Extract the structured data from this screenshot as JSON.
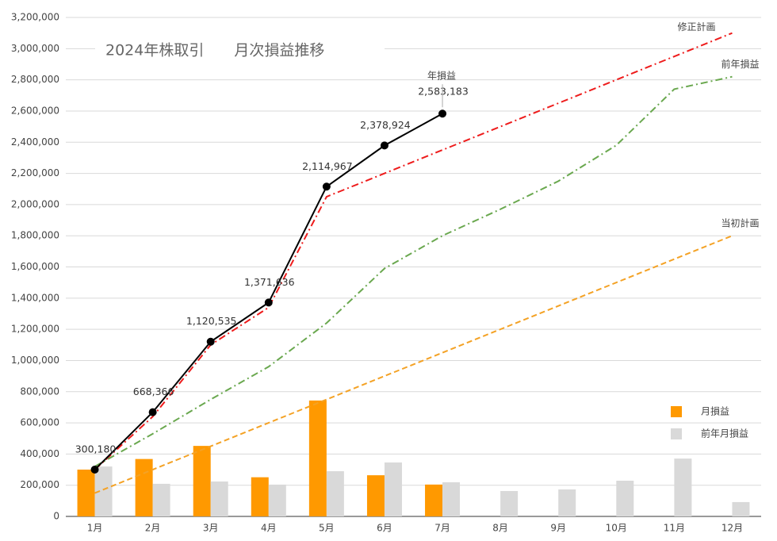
{
  "chart_data": {
    "type": "combo",
    "title": "2024年株取引　　月次損益推移",
    "categories": [
      "1月",
      "2月",
      "3月",
      "4月",
      "5月",
      "6月",
      "7月",
      "8月",
      "9月",
      "10月",
      "11月",
      "12月"
    ],
    "ylim": [
      0,
      3200000
    ],
    "yticks": [
      0,
      {
        "value": 200000,
        "label": "200,000"
      },
      {
        "value": 400000,
        "label": "400,000"
      },
      {
        "value": 600000,
        "label": "600,000"
      },
      {
        "value": 800000,
        "label": "800,000"
      },
      {
        "value": 1000000,
        "label": "1,000,000"
      },
      {
        "value": 1200000,
        "label": "1,200,000"
      },
      {
        "value": 1400000,
        "label": "1,400,000"
      },
      {
        "value": 1600000,
        "label": "1,600,000"
      },
      {
        "value": 1800000,
        "label": "1,800,000"
      },
      {
        "value": 2000000,
        "label": "2,000,000"
      },
      {
        "value": 2200000,
        "label": "2,200,000"
      },
      {
        "value": 2400000,
        "label": "2,400,000"
      },
      {
        "value": 2600000,
        "label": "2,600,000"
      },
      {
        "value": 2800000,
        "label": "2,800,000"
      },
      {
        "value": 3000000,
        "label": "3,000,000"
      },
      {
        "value": 3200000,
        "label": "3,200,000"
      }
    ],
    "grid": true,
    "legend": "right",
    "series": [
      {
        "name": "月損益",
        "type": "bar",
        "color": "#ff9900",
        "values": [
          300180,
          368186,
          452169,
          251101,
          743331,
          263957,
          204259,
          null,
          null,
          null,
          null,
          null
        ]
      },
      {
        "name": "前年月損益",
        "type": "bar",
        "color": "#d9d9d9",
        "values": [
          320000,
          209000,
          224000,
          204000,
          290000,
          346000,
          219000,
          163000,
          173000,
          229000,
          371000,
          92000
        ]
      },
      {
        "name": "修正計画",
        "type": "line",
        "dash": "dashdot",
        "color": "#ee1c1c",
        "values": [
          300000,
          640000,
          1100000,
          1340000,
          2050000,
          2200000,
          2350000,
          2500000,
          2650000,
          2800000,
          2950000,
          3100000
        ]
      },
      {
        "name": "前年損益",
        "type": "line",
        "dash": "dashdot",
        "color": "#6aa84f",
        "values": [
          320000,
          530000,
          750000,
          960000,
          1240000,
          1590000,
          1800000,
          1970000,
          2150000,
          2380000,
          2740000,
          2820000
        ]
      },
      {
        "name": "当初計画",
        "type": "line",
        "dash": "dash",
        "color": "#f4a225",
        "values": [
          150000,
          300000,
          450000,
          600000,
          750000,
          900000,
          1050000,
          1200000,
          1350000,
          1500000,
          1650000,
          1800000
        ]
      },
      {
        "name": "年損益",
        "type": "line",
        "dash": "solid",
        "markers": true,
        "color": "#000000",
        "values": [
          300180,
          668366,
          1120535,
          1371636,
          2114967,
          2378924,
          2583183,
          null,
          null,
          null,
          null,
          null
        ],
        "value_labels": [
          "300,180",
          "668,366",
          "1,120,535",
          "1,371,636",
          "2,114,967",
          "2,378,924",
          "2,583,183",
          null,
          null,
          null,
          null,
          null
        ]
      }
    ]
  }
}
